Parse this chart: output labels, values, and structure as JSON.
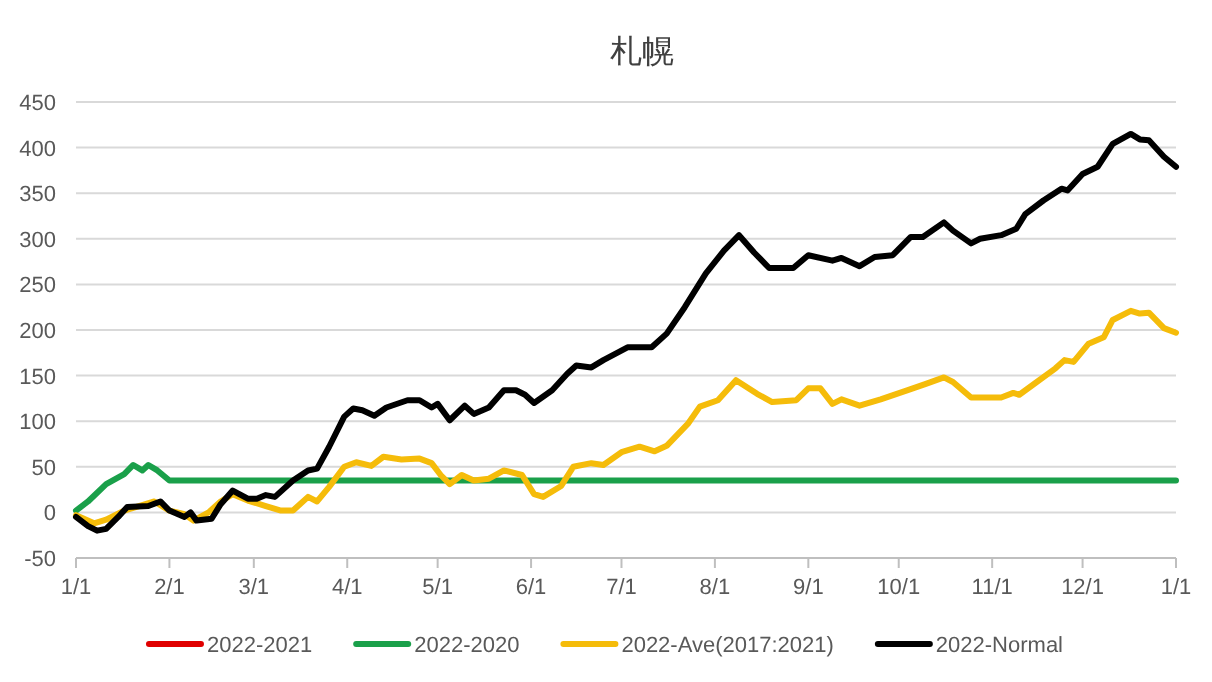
{
  "chart_data": {
    "type": "line",
    "title": "札幌",
    "xlim": [
      "2022-01-01",
      "2023-01-01"
    ],
    "ylim": [
      -50,
      450
    ],
    "xticks": [
      {
        "value": "2022-01-01",
        "label": "1/1"
      },
      {
        "value": "2022-02-01",
        "label": "2/1"
      },
      {
        "value": "2022-03-01",
        "label": "3/1"
      },
      {
        "value": "2022-04-01",
        "label": "4/1"
      },
      {
        "value": "2022-05-01",
        "label": "5/1"
      },
      {
        "value": "2022-06-01",
        "label": "6/1"
      },
      {
        "value": "2022-07-01",
        "label": "7/1"
      },
      {
        "value": "2022-08-01",
        "label": "8/1"
      },
      {
        "value": "2022-09-01",
        "label": "9/1"
      },
      {
        "value": "2022-10-01",
        "label": "10/1"
      },
      {
        "value": "2022-11-01",
        "label": "11/1"
      },
      {
        "value": "2022-12-01",
        "label": "12/1"
      },
      {
        "value": "2023-01-01",
        "label": "1/1"
      }
    ],
    "yticks": [
      -50,
      0,
      50,
      100,
      150,
      200,
      250,
      300,
      350,
      400,
      450
    ],
    "grid": "y",
    "legend": "bottom",
    "series": [
      {
        "name": "2022-2021",
        "color": "#e00000"
      },
      {
        "name": "2022-2020",
        "color": "#1aa04a",
        "x": [
          "2022-01-01",
          "2022-01-05",
          "2022-01-11",
          "2022-01-17",
          "2022-01-20",
          "2022-01-23",
          "2022-01-25",
          "2022-01-28",
          "2022-02-01",
          "2023-01-01"
        ],
        "values": [
          2,
          12,
          31,
          42,
          52,
          46,
          52,
          46,
          35,
          35
        ]
      },
      {
        "name": "2022-Ave(2017:2021)",
        "color": "#f5bc0a",
        "x": [
          "2022-01-01",
          "2022-01-07",
          "2022-01-11",
          "2022-01-17",
          "2022-01-27",
          "2022-02-01",
          "2022-02-06",
          "2022-02-09",
          "2022-02-14",
          "2022-02-18",
          "2022-02-22",
          "2022-02-27",
          "2022-03-05",
          "2022-03-10",
          "2022-03-14",
          "2022-03-19",
          "2022-03-22",
          "2022-03-26",
          "2022-03-31",
          "2022-04-04",
          "2022-04-09",
          "2022-04-13",
          "2022-04-19",
          "2022-04-25",
          "2022-04-29",
          "2022-05-02",
          "2022-05-05",
          "2022-05-09",
          "2022-05-13",
          "2022-05-18",
          "2022-05-23",
          "2022-05-29",
          "2022-06-02",
          "2022-06-05",
          "2022-06-11",
          "2022-06-15",
          "2022-06-21",
          "2022-06-25",
          "2022-07-01",
          "2022-07-07",
          "2022-07-12",
          "2022-07-16",
          "2022-07-23",
          "2022-07-27",
          "2022-08-02",
          "2022-08-08",
          "2022-08-15",
          "2022-08-20",
          "2022-08-28",
          "2022-09-01",
          "2022-09-05",
          "2022-09-09",
          "2022-09-12",
          "2022-09-18",
          "2022-09-25",
          "2022-10-04",
          "2022-10-10",
          "2022-10-16",
          "2022-10-19",
          "2022-10-25",
          "2022-11-04",
          "2022-11-08",
          "2022-11-10",
          "2022-11-15",
          "2022-11-22",
          "2022-11-25",
          "2022-11-28",
          "2022-12-03",
          "2022-12-08",
          "2022-12-11",
          "2022-12-17",
          "2022-12-20",
          "2022-12-23",
          "2022-12-28",
          "2023-01-01"
        ],
        "values": [
          -3,
          -12,
          -8,
          2,
          12,
          2,
          -2,
          -9,
          0,
          12,
          20,
          13,
          7,
          2,
          2,
          17,
          12,
          28,
          50,
          55,
          51,
          61,
          58,
          59,
          54,
          41,
          31,
          41,
          35,
          37,
          46,
          41,
          20,
          17,
          29,
          50,
          54,
          52,
          66,
          72,
          67,
          73,
          97,
          116,
          123,
          145,
          130,
          121,
          123,
          136,
          136,
          119,
          124,
          117,
          124,
          134,
          141,
          148,
          143,
          126,
          126,
          131,
          129,
          141,
          158,
          167,
          165,
          185,
          192,
          211,
          221,
          218,
          219,
          202,
          197
        ]
      },
      {
        "name": "2022-Normal",
        "color": "#000000",
        "x": [
          "2022-01-01",
          "2022-01-05",
          "2022-01-08",
          "2022-01-11",
          "2022-01-15",
          "2022-01-18",
          "2022-01-25",
          "2022-01-29",
          "2022-02-01",
          "2022-02-06",
          "2022-02-08",
          "2022-02-10",
          "2022-02-15",
          "2022-02-18",
          "2022-02-22",
          "2022-02-27",
          "2022-03-02",
          "2022-03-05",
          "2022-03-08",
          "2022-03-14",
          "2022-03-19",
          "2022-03-22",
          "2022-03-26",
          "2022-03-31",
          "2022-04-03",
          "2022-04-06",
          "2022-04-10",
          "2022-04-14",
          "2022-04-21",
          "2022-04-25",
          "2022-04-29",
          "2022-05-01",
          "2022-05-05",
          "2022-05-10",
          "2022-05-13",
          "2022-05-18",
          "2022-05-23",
          "2022-05-27",
          "2022-05-30",
          "2022-06-02",
          "2022-06-08",
          "2022-06-13",
          "2022-06-16",
          "2022-06-21",
          "2022-06-25",
          "2022-07-03",
          "2022-07-11",
          "2022-07-16",
          "2022-07-22",
          "2022-07-29",
          "2022-08-04",
          "2022-08-09",
          "2022-08-14",
          "2022-08-19",
          "2022-08-27",
          "2022-09-01",
          "2022-09-09",
          "2022-09-12",
          "2022-09-18",
          "2022-09-23",
          "2022-09-29",
          "2022-10-05",
          "2022-10-09",
          "2022-10-16",
          "2022-10-19",
          "2022-10-25",
          "2022-10-28",
          "2022-11-04",
          "2022-11-09",
          "2022-11-12",
          "2022-11-18",
          "2022-11-24",
          "2022-11-26",
          "2022-12-01",
          "2022-12-06",
          "2022-12-11",
          "2022-12-17",
          "2022-12-20",
          "2022-12-23",
          "2022-12-28",
          "2023-01-01"
        ],
        "values": [
          -5,
          -15,
          -20,
          -18,
          -5,
          6,
          7,
          12,
          2,
          -5,
          0,
          -9,
          -7,
          9,
          24,
          15,
          15,
          19,
          17,
          35,
          46,
          48,
          72,
          105,
          114,
          112,
          106,
          115,
          123,
          123,
          115,
          119,
          101,
          117,
          108,
          115,
          134,
          134,
          129,
          120,
          134,
          152,
          161,
          159,
          167,
          181,
          181,
          196,
          225,
          262,
          287,
          304,
          285,
          268,
          268,
          282,
          276,
          279,
          270,
          280,
          282,
          302,
          302,
          318,
          309,
          295,
          300,
          304,
          311,
          327,
          342,
          355,
          353,
          371,
          379,
          404,
          415,
          409,
          408,
          390,
          379
        ]
      }
    ]
  }
}
